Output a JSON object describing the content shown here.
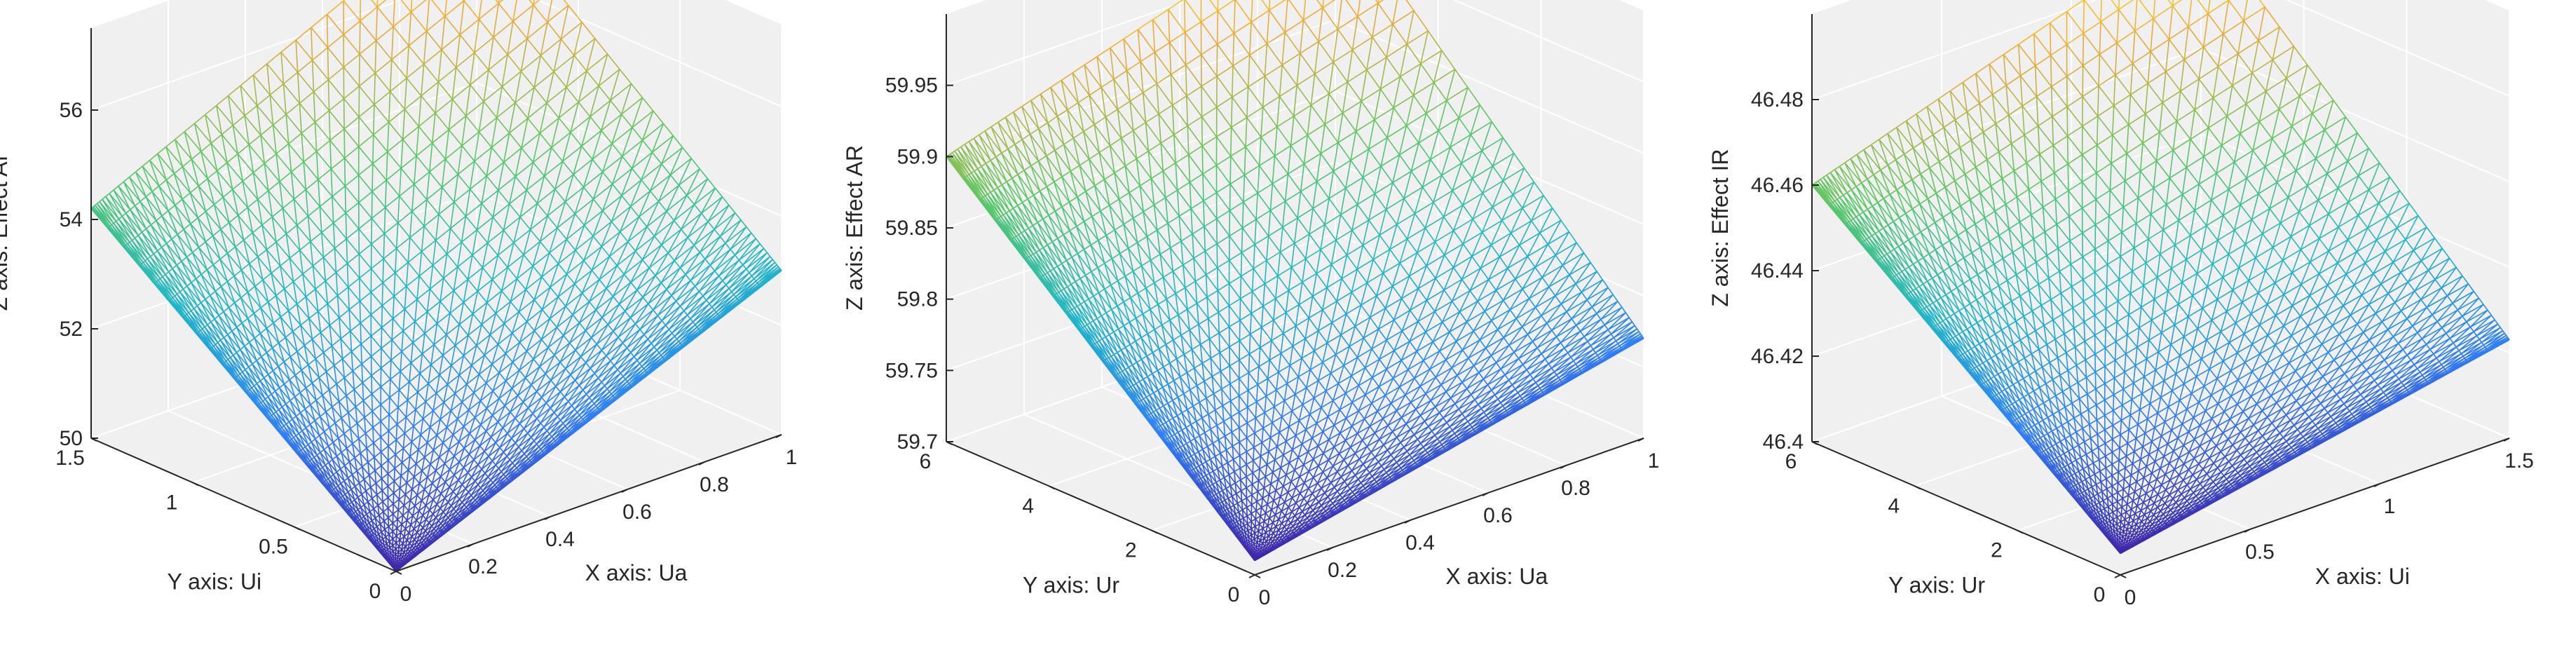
{
  "chart_data": [
    {
      "type": "surface",
      "xlabel": "X axis: Ua",
      "ylabel": "Y axis: Ui",
      "zlabel": "Z axis: Effect AI",
      "xlim": [
        0,
        1
      ],
      "ylim": [
        0,
        1.5
      ],
      "zlim": [
        50,
        57.5
      ],
      "xticks": [
        "0",
        "0.2",
        "0.4",
        "0.6",
        "0.8",
        "1"
      ],
      "yticks": [
        "0",
        "0.5",
        "1",
        "1.5"
      ],
      "zticks": [
        "50",
        "52",
        "54",
        "56"
      ],
      "corners": {
        "x0y0": 50.0,
        "x1y0": 53.0,
        "x0y1": 54.2,
        "x1y1": 57.5
      },
      "colormap": [
        "#3e26a8",
        "#2f7ef6",
        "#1fb6c8",
        "#5ac864",
        "#f2a93a",
        "#f9fb0e"
      ]
    },
    {
      "type": "surface",
      "xlabel": "X axis: Ua",
      "ylabel": "Y axis: Ur",
      "zlabel": "Z axis: Effect AR",
      "xlim": [
        0,
        1
      ],
      "ylim": [
        0,
        6
      ],
      "zlim": [
        59.7,
        60.0
      ],
      "xticks": [
        "0",
        "0.2",
        "0.4",
        "0.6",
        "0.8",
        "1"
      ],
      "yticks": [
        "0",
        "2",
        "4",
        "6"
      ],
      "zticks": [
        "59.7",
        "59.75",
        "59.8",
        "59.85",
        "59.9",
        "59.95"
      ],
      "corners": {
        "x0y0": 59.71,
        "x1y0": 59.77,
        "x0y1": 59.9,
        "x1y1": 59.985
      },
      "colormap": [
        "#3e26a8",
        "#2f7ef6",
        "#1fb6c8",
        "#5ac864",
        "#f2a93a",
        "#f9fb0e"
      ]
    },
    {
      "type": "surface",
      "xlabel": "X axis: Ui",
      "ylabel": "Y axis: Ur",
      "zlabel": "Z axis: Effect IR",
      "xlim": [
        0,
        1.5
      ],
      "ylim": [
        0,
        6
      ],
      "zlim": [
        46.4,
        46.5
      ],
      "xticks": [
        "0",
        "0.5",
        "1",
        "1.5"
      ],
      "yticks": [
        "0",
        "2",
        "4",
        "6"
      ],
      "zticks": [
        "46.4",
        "46.42",
        "46.44",
        "46.46",
        "46.48"
      ],
      "corners": {
        "x0y0": 46.405,
        "x1y0": 46.423,
        "x0y1": 46.46,
        "x1y1": 46.49
      },
      "colormap": [
        "#3e26a8",
        "#2f7ef6",
        "#1fb6c8",
        "#5ac864",
        "#f2a93a",
        "#f9fb0e"
      ]
    }
  ]
}
